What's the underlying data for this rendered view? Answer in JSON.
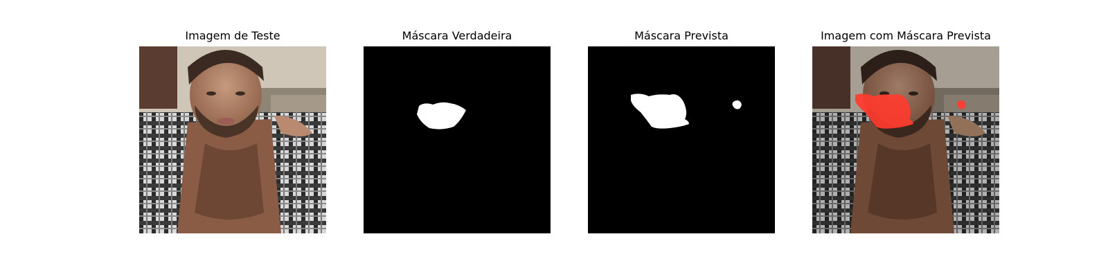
{
  "panels": [
    {
      "title": "Imagem de Teste"
    },
    {
      "title": "Máscara Verdadeira"
    },
    {
      "title": "Máscara Prevista"
    },
    {
      "title": "Imagem com Máscara Prevista"
    }
  ],
  "colors": {
    "mask_background": "#000000",
    "mask_foreground": "#ffffff",
    "overlay_highlight": "#ff3b2e"
  }
}
